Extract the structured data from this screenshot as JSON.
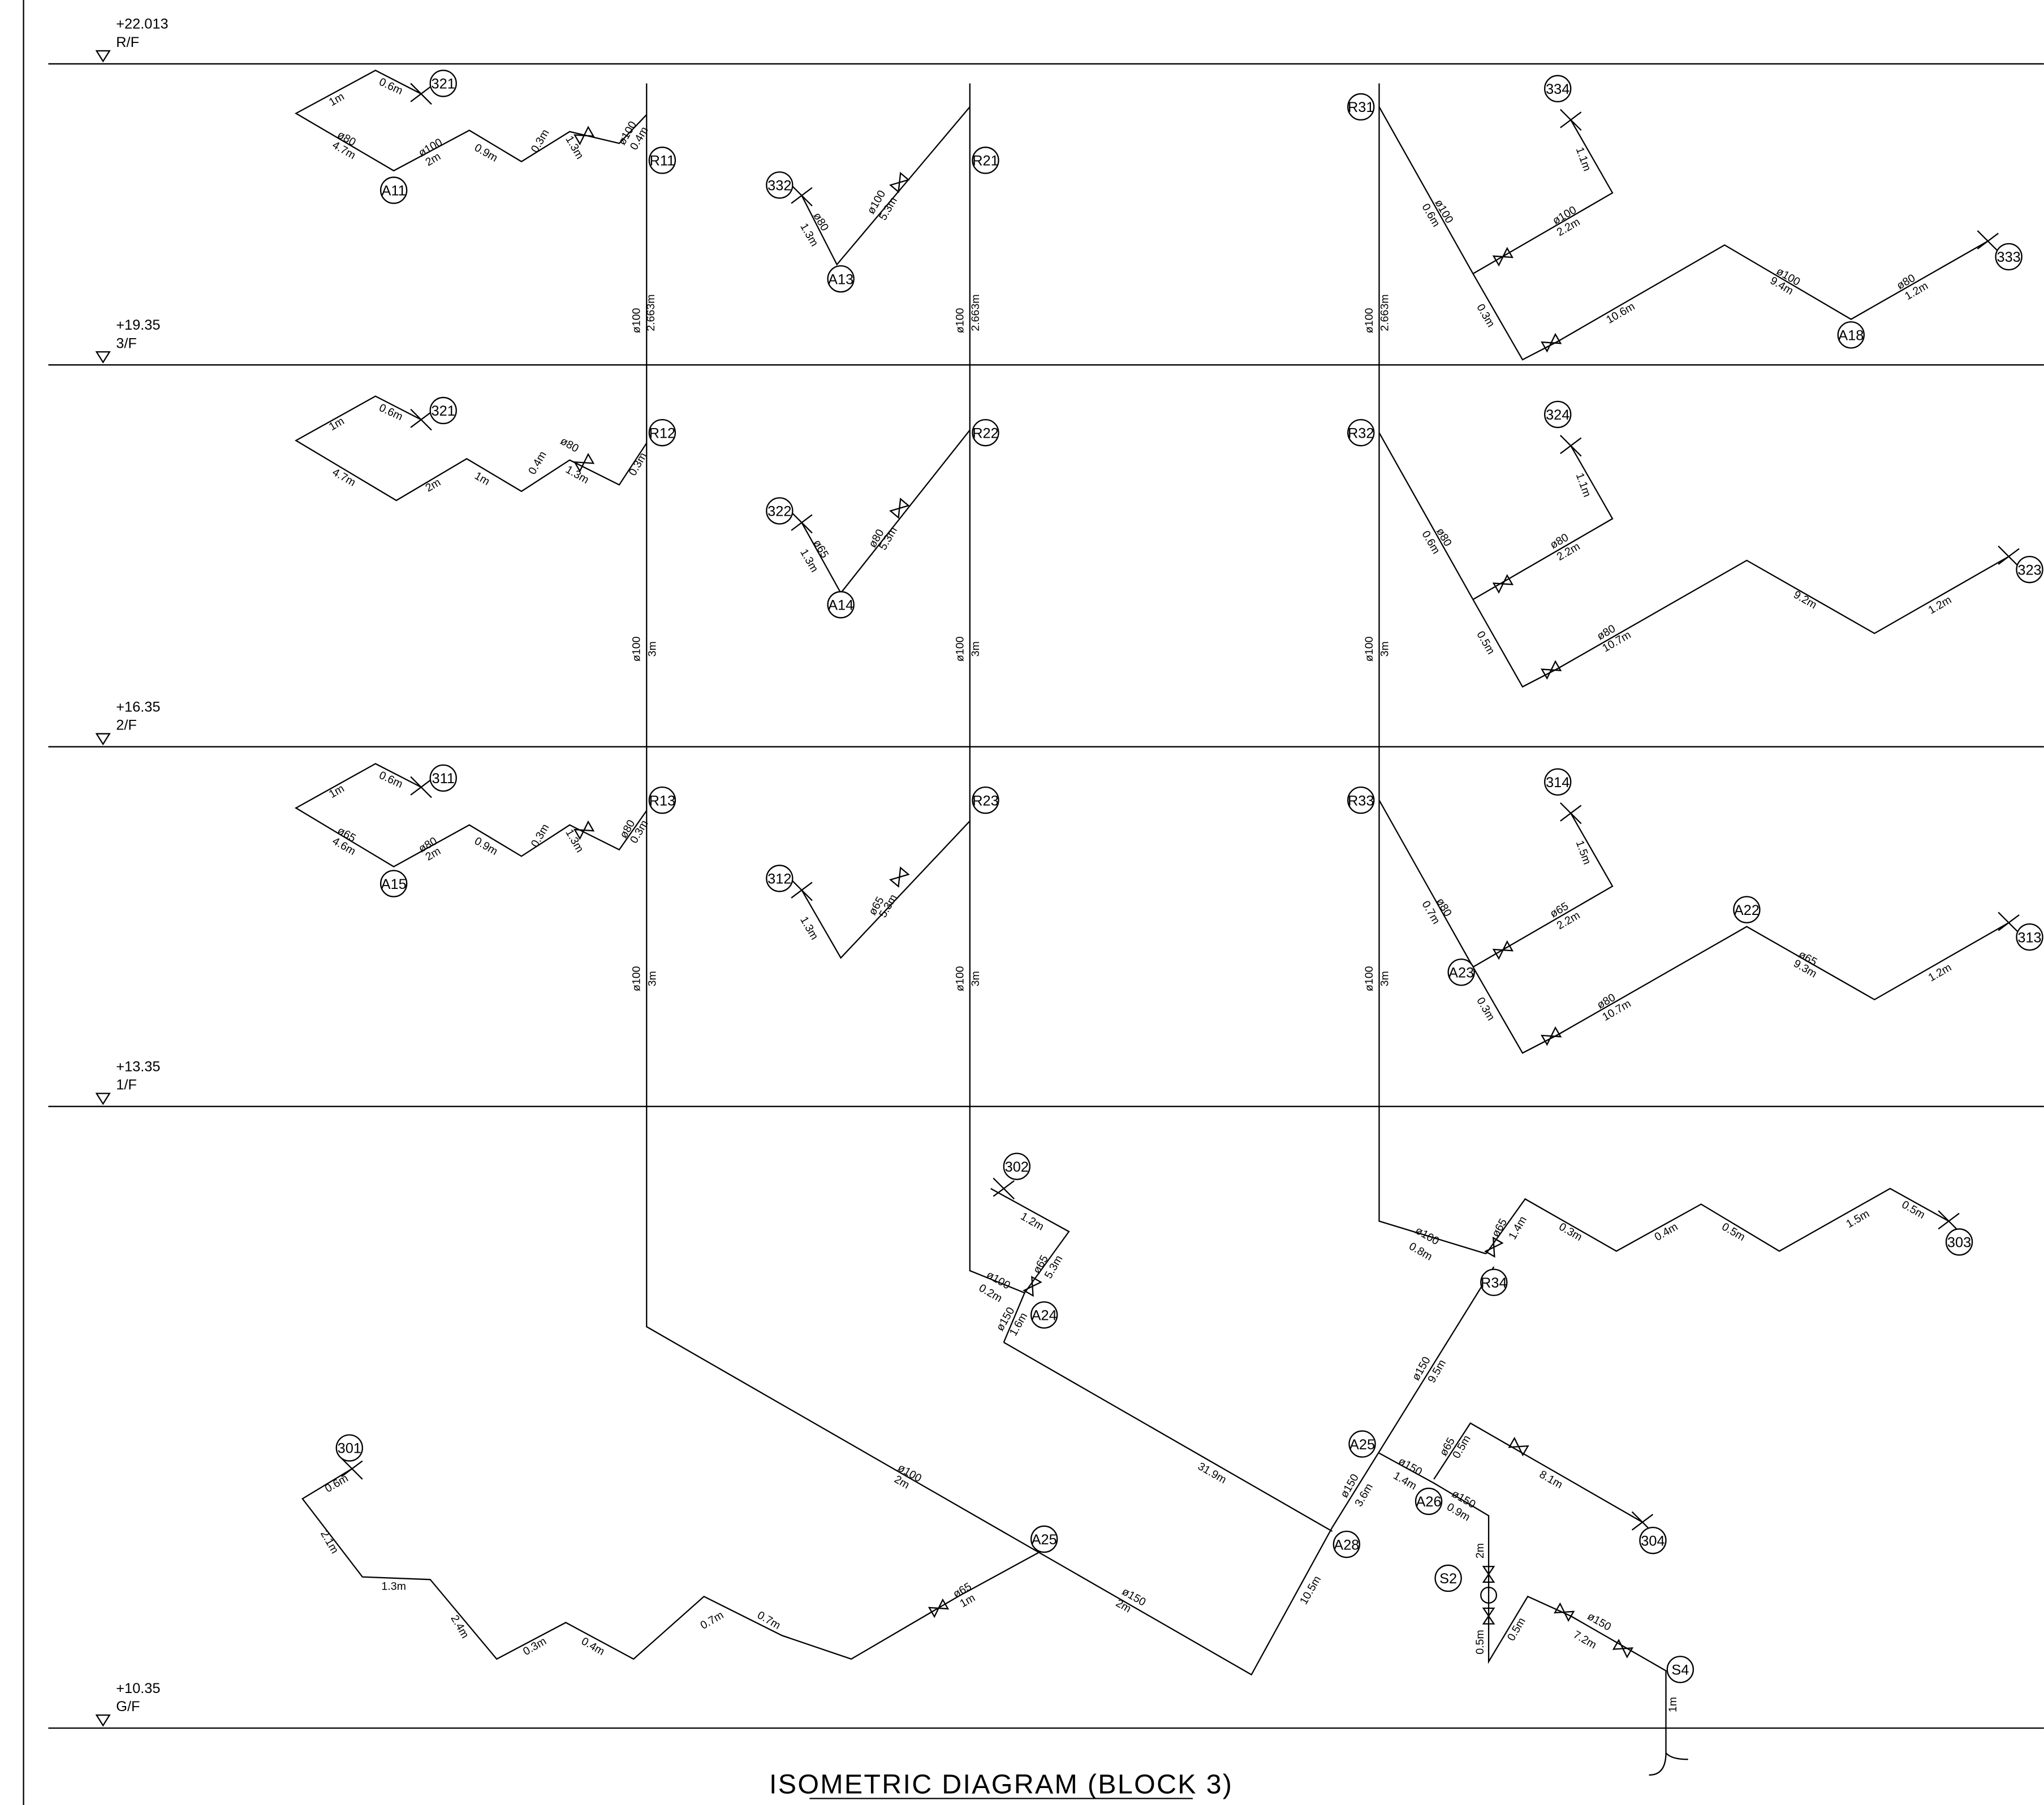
{
  "title": "ISOMETRIC DIAGRAM (BLOCK 3)",
  "levels": [
    {
      "elevation": "+22.013",
      "floor": "R/F"
    },
    {
      "elevation": "+19.35",
      "floor": "3/F"
    },
    {
      "elevation": "+16.35",
      "floor": "2/F"
    },
    {
      "elevation": "+13.35",
      "floor": "1/F"
    },
    {
      "elevation": "+10.35",
      "floor": "G/F"
    }
  ],
  "tags": [
    "321",
    "A11",
    "R11",
    "332",
    "A13",
    "R21",
    "R31",
    "334",
    "333",
    "A18",
    "321",
    "R12",
    "322",
    "A14",
    "R22",
    "R32",
    "324",
    "323",
    "311",
    "A15",
    "R13",
    "312",
    "R23",
    "R33",
    "314",
    "A22",
    "A23",
    "313",
    "302",
    "A24",
    "R34",
    "303",
    "A25",
    "A26",
    "304",
    "S2",
    "A28",
    "A25",
    "301",
    "S4"
  ],
  "dims": [
    "1m",
    "0.6m",
    "ø80",
    "4.7m",
    "ø100",
    "2m",
    "0.9m",
    "0.3m",
    "1.3m",
    "ø100",
    "0.4m",
    "ø100",
    "2.663m",
    "ø80",
    "1.3m",
    "ø100",
    "5.3m",
    "ø100",
    "2.663m",
    "ø100",
    "0.6m",
    "ø100",
    "2.2m",
    "1.1m",
    "0.3m",
    "10.6m",
    "ø100",
    "9.4m",
    "ø80",
    "1.2m",
    "ø100",
    "2.663m",
    "1m",
    "0.6m",
    "4.7m",
    "2m",
    "1m",
    "0.4m",
    "ø80",
    "1.3m",
    "0.3m",
    "ø100",
    "3m",
    "ø65",
    "1.3m",
    "ø80",
    "5.3m",
    "ø100",
    "3m",
    "ø80",
    "0.6m",
    "ø80",
    "2.2m",
    "1.1m",
    "0.5m",
    "ø80",
    "10.7m",
    "9.2m",
    "1.2m",
    "ø100",
    "3m",
    "1m",
    "0.6m",
    "ø65",
    "4.6m",
    "ø80",
    "2m",
    "0.9m",
    "0.3m",
    "1.3m",
    "ø80",
    "0.3m",
    "ø100",
    "3m",
    "1.3m",
    "ø65",
    "5.3m",
    "ø100",
    "3m",
    "ø80",
    "0.7m",
    "ø65",
    "2.2m",
    "1.5m",
    "0.3m",
    "ø80",
    "10.7m",
    "ø65",
    "9.3m",
    "1.2m",
    "ø100",
    "3m",
    "1.2m",
    "ø100",
    "0.2m",
    "ø65",
    "5.3m",
    "ø150",
    "1.6m",
    "31.9m",
    "ø100",
    "2m",
    "ø150",
    "2m",
    "10.5m",
    "ø150",
    "3.6m",
    "ø150",
    "9.5m",
    "ø100",
    "0.8m",
    "ø65",
    "1.4m",
    "0.3m",
    "0.4m",
    "0.5m",
    "1.5m",
    "0.5m",
    "ø150",
    "1.4m",
    "ø65",
    "0.5m",
    "ø150",
    "0.9m",
    "8.1m",
    "2m",
    "0.5m",
    "0.5m",
    "ø150",
    "7.2m",
    "1m",
    "0.6m",
    "2.1m",
    "1.3m",
    "2.4m",
    "0.3m",
    "0.4m",
    "0.7m",
    "0.7m",
    "ø65",
    "1m"
  ]
}
